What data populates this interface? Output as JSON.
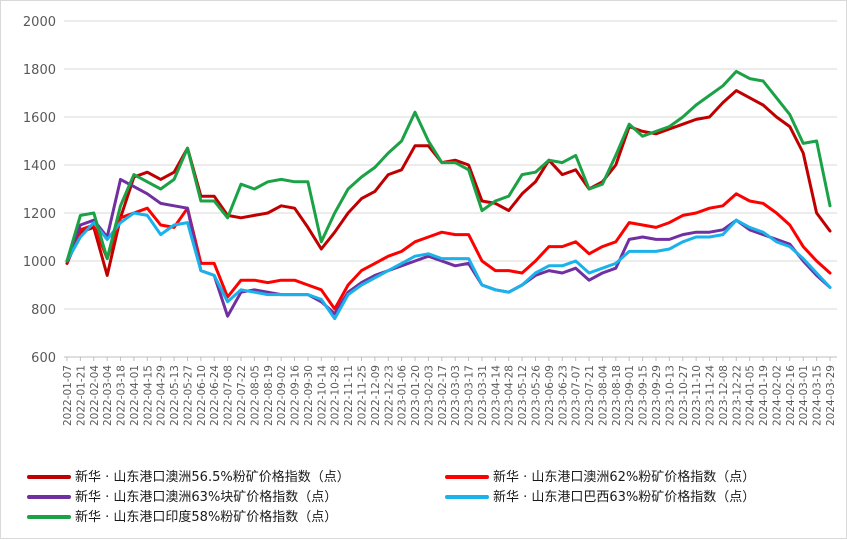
{
  "chart_data": {
    "type": "line",
    "ylim": [
      600,
      2000
    ],
    "yticks": [
      "600",
      "800",
      "1000",
      "1200",
      "1400",
      "1600",
      "1800",
      "2000"
    ],
    "grid": "horizontal",
    "legend_position": "bottom",
    "x": [
      "2022-01-07",
      "2022-01-21",
      "2022-02-04",
      "2022-03-04",
      "2022-03-18",
      "2022-04-01",
      "2022-04-15",
      "2022-04-29",
      "2022-05-13",
      "2022-05-27",
      "2022-06-10",
      "2022-06-24",
      "2022-07-08",
      "2022-07-22",
      "2022-08-05",
      "2022-08-19",
      "2022-09-02",
      "2022-09-16",
      "2022-09-30",
      "2022-10-14",
      "2022-10-28",
      "2022-11-11",
      "2022-11-25",
      "2022-12-09",
      "2022-12-23",
      "2023-01-06",
      "2023-01-20",
      "2023-02-03",
      "2023-02-17",
      "2023-03-03",
      "2023-03-17",
      "2023-03-31",
      "2023-04-14",
      "2023-04-28",
      "2023-05-12",
      "2023-05-26",
      "2023-06-09",
      "2023-06-23",
      "2023-07-07",
      "2023-07-21",
      "2023-08-04",
      "2023-08-18",
      "2023-09-01",
      "2023-09-15",
      "2023-09-29",
      "2023-10-13",
      "2023-10-27",
      "2023-11-10",
      "2023-11-24",
      "2023-12-08",
      "2023-12-22",
      "2024-01-05",
      "2024-01-19",
      "2024-02-02",
      "2024-02-16",
      "2024-03-01",
      "2024-03-15",
      "2024-03-29"
    ],
    "series": [
      {
        "name": "新华 · 山东港口澳洲56.5%粉矿价格指数（点）",
        "color": "#c00000",
        "values": [
          990,
          1120,
          1140,
          940,
          1180,
          1350,
          1370,
          1340,
          1370,
          1470,
          1270,
          1270,
          1190,
          1180,
          1190,
          1200,
          1230,
          1220,
          1140,
          1050,
          1120,
          1200,
          1260,
          1290,
          1360,
          1380,
          1480,
          1480,
          1410,
          1420,
          1400,
          1250,
          1240,
          1210,
          1280,
          1330,
          1420,
          1360,
          1380,
          1300,
          1330,
          1400,
          1560,
          1540,
          1530,
          1550,
          1570,
          1590,
          1600,
          1660,
          1710,
          1680,
          1650,
          1600,
          1560,
          1450,
          1200,
          1125
        ]
      },
      {
        "name": "新华 · 山东港口澳洲62%粉矿价格指数（点）",
        "color": "#ff0000",
        "values": [
          1000,
          1130,
          1150,
          1010,
          1180,
          1200,
          1220,
          1150,
          1140,
          1220,
          990,
          990,
          850,
          920,
          920,
          910,
          920,
          920,
          900,
          880,
          800,
          900,
          960,
          990,
          1020,
          1040,
          1080,
          1100,
          1120,
          1110,
          1110,
          1000,
          960,
          960,
          950,
          1000,
          1060,
          1060,
          1080,
          1030,
          1060,
          1080,
          1160,
          1150,
          1140,
          1160,
          1190,
          1200,
          1220,
          1230,
          1280,
          1250,
          1240,
          1200,
          1150,
          1060,
          1000,
          950
        ]
      },
      {
        "name": "新华 · 山东港口澳洲63%块矿价格指数（点）",
        "color": "#7030a0",
        "values": [
          1000,
          1150,
          1170,
          1100,
          1340,
          1310,
          1280,
          1240,
          1230,
          1220,
          960,
          940,
          770,
          870,
          880,
          870,
          860,
          860,
          860,
          830,
          780,
          870,
          910,
          940,
          960,
          980,
          1000,
          1020,
          1000,
          980,
          990,
          900,
          880,
          870,
          900,
          940,
          960,
          950,
          970,
          920,
          950,
          970,
          1090,
          1100,
          1090,
          1090,
          1110,
          1120,
          1120,
          1130,
          1170,
          1130,
          1110,
          1090,
          1070,
          1000,
          940,
          890
        ]
      },
      {
        "name": "新华 · 山东港口巴西63%粉矿价格指数（点）",
        "color": "#1ab2eb",
        "values": [
          1000,
          1100,
          1160,
          1090,
          1160,
          1200,
          1190,
          1110,
          1150,
          1160,
          960,
          940,
          830,
          880,
          870,
          860,
          860,
          860,
          860,
          840,
          760,
          860,
          900,
          930,
          960,
          990,
          1020,
          1030,
          1010,
          1010,
          1010,
          900,
          880,
          870,
          900,
          950,
          980,
          980,
          1000,
          950,
          970,
          990,
          1040,
          1040,
          1040,
          1050,
          1080,
          1100,
          1100,
          1110,
          1170,
          1140,
          1120,
          1080,
          1060,
          1010,
          950,
          890
        ]
      },
      {
        "name": "新华 · 山东港口印度58%粉矿价格指数（点）",
        "color": "#1ba146",
        "values": [
          1000,
          1190,
          1200,
          1010,
          1230,
          1360,
          1330,
          1300,
          1340,
          1470,
          1250,
          1250,
          1180,
          1320,
          1300,
          1330,
          1340,
          1330,
          1330,
          1080,
          1200,
          1300,
          1350,
          1390,
          1450,
          1500,
          1620,
          1500,
          1410,
          1410,
          1380,
          1210,
          1250,
          1270,
          1360,
          1370,
          1420,
          1410,
          1440,
          1300,
          1320,
          1440,
          1570,
          1520,
          1540,
          1560,
          1600,
          1650,
          1690,
          1730,
          1790,
          1760,
          1750,
          1680,
          1610,
          1490,
          1500,
          1230
        ]
      }
    ]
  }
}
